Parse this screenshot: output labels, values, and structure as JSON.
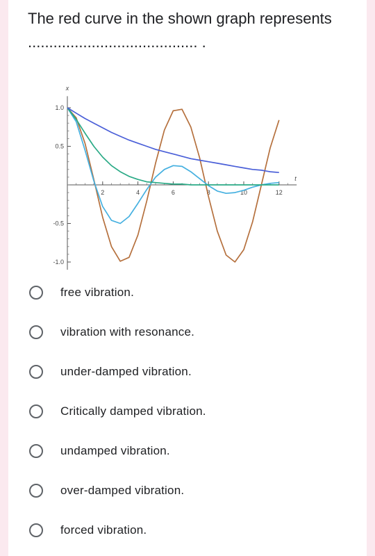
{
  "question": {
    "text": "The red curve in the shown graph represents ........................................ ."
  },
  "chart_data": {
    "type": "line",
    "x_axis_label": "t",
    "y_axis_label": "x",
    "xlim": [
      0,
      13
    ],
    "ylim": [
      -1.1,
      1.15
    ],
    "x_ticks": [
      2,
      4,
      6,
      8,
      10,
      12
    ],
    "y_ticks": [
      1.0,
      0.5,
      -0.5,
      -1.0
    ],
    "x_tick_labels": [
      "2",
      "4",
      "6",
      "8",
      "10",
      "12"
    ],
    "y_tick_labels": [
      "1.0",
      "0.5",
      "-0.5",
      "-1.0"
    ],
    "colors": {
      "red": "#b5703d",
      "light_blue": "#45b0e0",
      "green": "#2aaa86",
      "dark_blue": "#4a5fd8"
    },
    "series": [
      {
        "color_key": "red",
        "x": [
          0,
          0.5,
          1,
          1.5,
          2,
          2.5,
          3,
          3.5,
          4,
          4.5,
          5,
          5.5,
          6,
          6.5,
          7,
          7.5,
          8,
          8.5,
          9,
          9.5,
          10,
          10.5,
          11,
          11.5,
          12
        ],
        "y": [
          1.0,
          0.87,
          0.54,
          0.07,
          -0.42,
          -0.8,
          -0.99,
          -0.94,
          -0.65,
          -0.21,
          0.28,
          0.71,
          0.96,
          0.98,
          0.75,
          0.35,
          -0.15,
          -0.6,
          -0.91,
          -1.0,
          -0.84,
          -0.48,
          0.0,
          0.48,
          0.84
        ]
      },
      {
        "color_key": "light_blue",
        "x": [
          0,
          0.5,
          1,
          1.5,
          2,
          2.5,
          3,
          3.5,
          4,
          4.5,
          5,
          5.5,
          6,
          6.5,
          7,
          7.5,
          8,
          8.5,
          9,
          9.5,
          10,
          10.5,
          11,
          11.5,
          12
        ],
        "y": [
          1.0,
          0.82,
          0.45,
          0.05,
          -0.28,
          -0.46,
          -0.5,
          -0.41,
          -0.24,
          -0.06,
          0.1,
          0.2,
          0.25,
          0.24,
          0.17,
          0.08,
          -0.01,
          -0.08,
          -0.11,
          -0.1,
          -0.07,
          -0.03,
          0.0,
          0.02,
          0.03
        ]
      },
      {
        "color_key": "green",
        "x": [
          0,
          0.5,
          1,
          1.5,
          2,
          2.5,
          3,
          3.5,
          4,
          4.5,
          5,
          5.5,
          6,
          6.5,
          7,
          7.5,
          8,
          8.5,
          9,
          9.5,
          10,
          10.5,
          11,
          11.5,
          12
        ],
        "y": [
          1.0,
          0.85,
          0.67,
          0.5,
          0.36,
          0.25,
          0.17,
          0.11,
          0.07,
          0.04,
          0.03,
          0.02,
          0.01,
          0.01,
          0.0,
          0.0,
          0.0,
          0.0,
          0.0,
          0.0,
          0.0,
          0.0,
          0.0,
          0.0,
          0.0
        ]
      },
      {
        "color_key": "dark_blue",
        "x": [
          0,
          0.5,
          1,
          1.5,
          2,
          2.5,
          3,
          3.5,
          4,
          4.5,
          5,
          5.5,
          6,
          6.5,
          7,
          7.5,
          8,
          8.5,
          9,
          9.5,
          10,
          10.5,
          11,
          11.5,
          12
        ],
        "y": [
          1.0,
          0.93,
          0.86,
          0.8,
          0.74,
          0.68,
          0.63,
          0.58,
          0.54,
          0.5,
          0.46,
          0.43,
          0.4,
          0.37,
          0.34,
          0.32,
          0.3,
          0.28,
          0.26,
          0.24,
          0.22,
          0.2,
          0.19,
          0.17,
          0.16
        ]
      }
    ]
  },
  "options": [
    {
      "label": "free vibration."
    },
    {
      "label": "vibration with resonance."
    },
    {
      "label": "under-damped vibration."
    },
    {
      "label": "Critically damped vibration."
    },
    {
      "label": "undamped vibration."
    },
    {
      "label": "over-damped vibration."
    },
    {
      "label": "forced vibration."
    }
  ]
}
